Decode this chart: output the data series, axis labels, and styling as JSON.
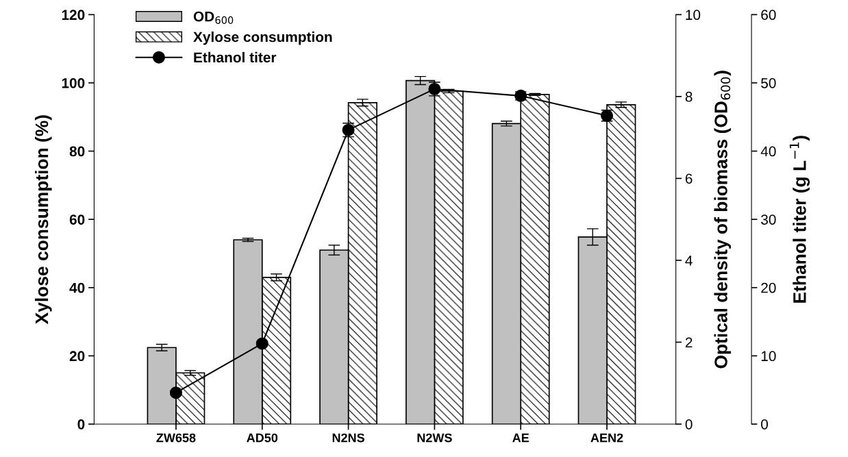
{
  "chart_data": {
    "type": "bar",
    "categories": [
      "ZW658",
      "AD50",
      "N2NS",
      "N2WS",
      "AE",
      "AEN2"
    ],
    "ylabel": "Xylose consumption (%)",
    "ylim": [
      0,
      120
    ],
    "yticks": [
      0,
      20,
      40,
      60,
      80,
      100,
      120
    ],
    "y2label": "Optical density of biomass (OD$_{600}$)",
    "y2lim": [
      0,
      10
    ],
    "y2ticks": [
      0,
      2,
      4,
      6,
      8,
      10
    ],
    "y3label": "Ethanol titer (g L$^{−1}$)",
    "y3lim": [
      0,
      60
    ],
    "y3ticks": [
      0,
      10,
      20,
      30,
      40,
      50,
      60
    ],
    "legend": "top left",
    "grid": false,
    "series": [
      {
        "name": "OD$_{600}$",
        "axis": "y2",
        "color": "#c0c0c0",
        "values": [
          1.87,
          4.5,
          4.25,
          8.39,
          7.34,
          4.57
        ],
        "errors": [
          0.08,
          0.04,
          0.12,
          0.1,
          0.06,
          0.2
        ]
      },
      {
        "name": "Xylose consumption",
        "axis": "y",
        "color": "#ffffff",
        "values": [
          15,
          43,
          94.2,
          97.6,
          96.6,
          93.6
        ],
        "errors": [
          0.7,
          1,
          1,
          0.5,
          0.3,
          0.8
        ]
      },
      {
        "name": "Ethanol titer",
        "type": "line",
        "axis": "y3",
        "color": "#000000",
        "marker": "circle",
        "values": [
          4.6,
          11.8,
          43.1,
          49.1,
          48.1,
          45.2
        ],
        "errors": [
          0.3,
          0.3,
          1,
          1,
          0.6,
          0.8
        ]
      }
    ]
  }
}
